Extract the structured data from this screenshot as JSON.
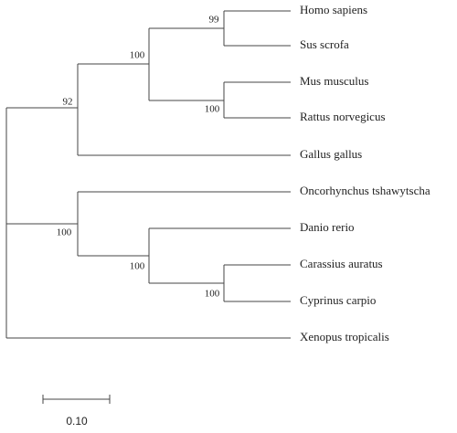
{
  "tree": {
    "leaves": [
      "Homo sapiens",
      "Sus scrofa",
      "Mus musculus",
      "Rattus norvegicus",
      "Gallus gallus",
      "Oncorhynchus tshawytscha",
      "Danio rerio",
      "Carassius auratus",
      "Cyprinus carpio",
      "Xenopus tropicalis"
    ],
    "bootstrap": [
      99,
      100,
      100,
      92,
      100,
      100,
      100
    ]
  },
  "scale_bar": {
    "label": "0.10"
  }
}
